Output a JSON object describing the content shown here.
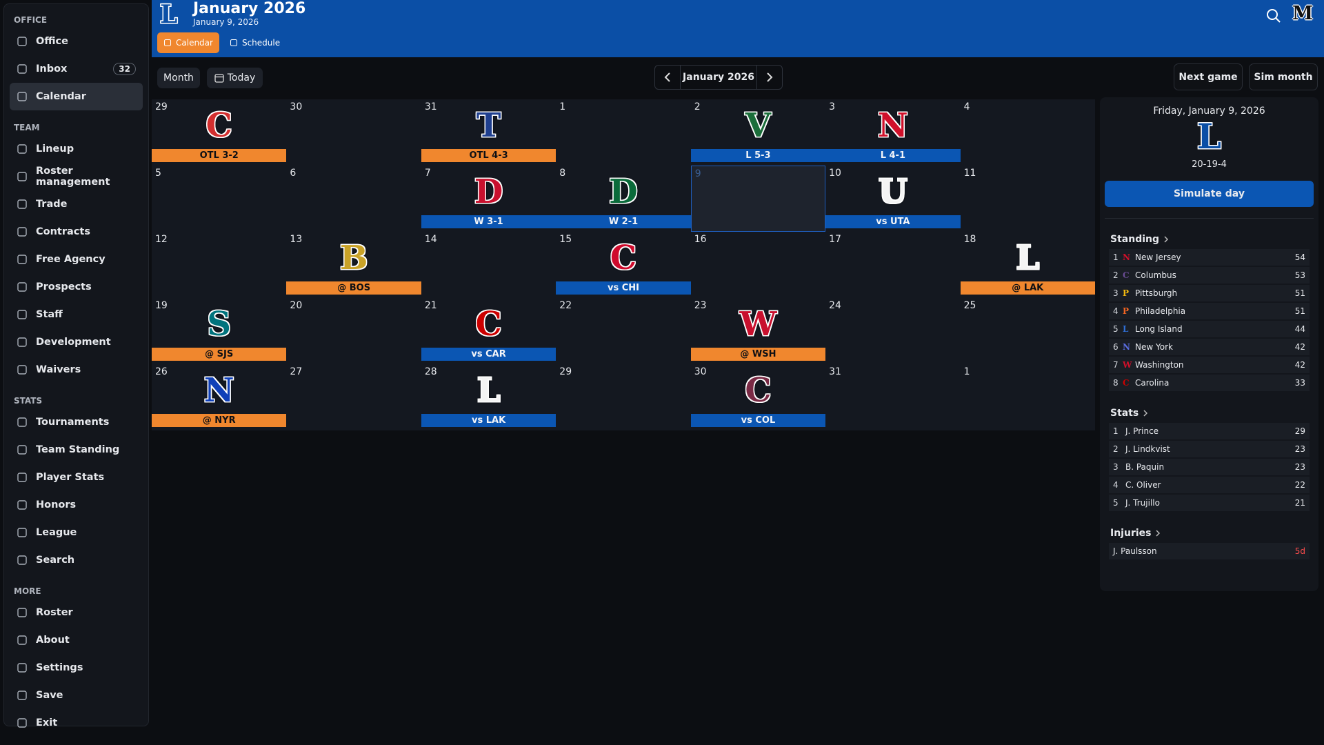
{
  "header": {
    "logo": "L",
    "title": "January 2026",
    "subtitle": "January 9, 2026",
    "tabs": [
      {
        "label": "Calendar",
        "active": true
      },
      {
        "label": "Schedule"
      }
    ],
    "right_logo": "M"
  },
  "sidebar": {
    "sections": [
      {
        "title": "OFFICE",
        "items": [
          {
            "label": "Office"
          },
          {
            "label": "Inbox",
            "badge": 32
          },
          {
            "label": "Calendar",
            "active": true
          }
        ]
      },
      {
        "title": "TEAM",
        "items": [
          {
            "label": "Lineup"
          },
          {
            "label": "Roster management"
          },
          {
            "label": "Trade"
          },
          {
            "label": "Contracts"
          },
          {
            "label": "Free Agency"
          },
          {
            "label": "Prospects"
          },
          {
            "label": "Staff"
          },
          {
            "label": "Development"
          },
          {
            "label": "Waivers"
          }
        ]
      },
      {
        "title": "STATS",
        "items": [
          {
            "label": "Tournaments"
          },
          {
            "label": "Team Standing"
          },
          {
            "label": "Player Stats"
          },
          {
            "label": "Honors"
          },
          {
            "label": "League"
          },
          {
            "label": "Search"
          }
        ]
      },
      {
        "title": "MORE",
        "items": [
          {
            "label": "Roster"
          },
          {
            "label": "About"
          },
          {
            "label": "Settings"
          },
          {
            "label": "Save"
          },
          {
            "label": "Exit"
          }
        ]
      }
    ]
  },
  "toolbar": {
    "view": "Month",
    "today": "Today",
    "month": "January 2026",
    "buttons": [
      "Next game",
      "Sim month"
    ]
  },
  "calendar": {
    "weeks": [
      [
        {
          "day": 29,
          "game": {
            "logo": "C",
            "logo_color": "#d32f2f",
            "result": "OTL 3-2",
            "color": "#f0872e"
          }
        },
        {
          "day": 30
        },
        {
          "day": 31,
          "game": {
            "logo": "T",
            "logo_color": "#1f3f8f",
            "result": "OTL 4-3",
            "color": "#f0872e"
          }
        },
        {
          "day": 1
        },
        {
          "day": 2,
          "game": {
            "logo": "V",
            "logo_color": "#1b6e3a",
            "result": "L 5-3",
            "color": "#0b56b3"
          }
        },
        {
          "day": 3,
          "game": {
            "logo": "N",
            "logo_color": "#d0102a",
            "result": "L 4-1",
            "color": "#0b56b3"
          }
        },
        {
          "day": 4
        }
      ],
      [
        {
          "day": 5
        },
        {
          "day": 6
        },
        {
          "day": 7,
          "game": {
            "logo": "D",
            "logo_color": "#c8102e",
            "result": "W 3-1",
            "color": "#0b56b3"
          }
        },
        {
          "day": 8,
          "game": {
            "logo": "D",
            "logo_color": "#0a6b3a",
            "result": "W 2-1",
            "color": "#0b56b3"
          }
        },
        {
          "day": 9,
          "selected": true
        },
        {
          "day": 10,
          "game": {
            "logo": "U",
            "logo_color": "#f4f4f4",
            "result": "vs UTA",
            "color": "#0b56b3"
          }
        },
        {
          "day": 11
        }
      ],
      [
        {
          "day": 12
        },
        {
          "day": 13,
          "game": {
            "logo": "B",
            "logo_color": "#c9a227",
            "result": "@ BOS",
            "color": "#f0872e"
          }
        },
        {
          "day": 14
        },
        {
          "day": 15,
          "game": {
            "logo": "C",
            "logo_color": "#cf0a2c",
            "result": "vs CHI",
            "color": "#0b56b3"
          }
        },
        {
          "day": 16
        },
        {
          "day": 17
        },
        {
          "day": 18,
          "game": {
            "logo": "L",
            "logo_color": "#f4f4f4",
            "result": "@ LAK",
            "color": "#f0872e"
          }
        }
      ],
      [
        {
          "day": 19,
          "game": {
            "logo": "S",
            "logo_color": "#00737d",
            "result": "@ SJS",
            "color": "#f0872e"
          }
        },
        {
          "day": 20
        },
        {
          "day": 21,
          "game": {
            "logo": "C",
            "logo_color": "#cc0000",
            "result": "vs CAR",
            "color": "#0b56b3"
          }
        },
        {
          "day": 22
        },
        {
          "day": 23,
          "game": {
            "logo": "W",
            "logo_color": "#c8102e",
            "result": "@ WSH",
            "color": "#f0872e"
          }
        },
        {
          "day": 24
        },
        {
          "day": 25
        }
      ],
      [
        {
          "day": 26,
          "game": {
            "logo": "N",
            "logo_color": "#1040b8",
            "result": "@ NYR",
            "color": "#f0872e"
          }
        },
        {
          "day": 27
        },
        {
          "day": 28,
          "game": {
            "logo": "L",
            "logo_color": "#f4f4f4",
            "result": "vs LAK",
            "color": "#0b56b3"
          }
        },
        {
          "day": 29
        },
        {
          "day": 30,
          "game": {
            "logo": "C",
            "logo_color": "#7a2a45",
            "result": "vs COL",
            "color": "#0b56b3"
          }
        },
        {
          "day": 31
        },
        {
          "day": 1
        }
      ]
    ]
  },
  "day_panel": {
    "date": "Friday, January 9, 2026",
    "logo": "L",
    "record": "20-19-4",
    "action": "Simulate day"
  },
  "standing": {
    "title": "Standing",
    "rows": [
      {
        "rank": 1,
        "logo": "N",
        "logo_color": "#d0102a",
        "team": "New Jersey",
        "points": 54
      },
      {
        "rank": 2,
        "logo": "C",
        "logo_color": "#6a4c93",
        "team": "Columbus",
        "points": 53
      },
      {
        "rank": 3,
        "logo": "P",
        "logo_color": "#f2b90f",
        "team": "Pittsburgh",
        "points": 51
      },
      {
        "rank": 4,
        "logo": "P",
        "logo_color": "#f26522",
        "team": "Philadelphia",
        "points": 51
      },
      {
        "rank": 5,
        "logo": "L",
        "logo_color": "#2f6fd6",
        "team": "Long Island",
        "points": 44
      },
      {
        "rank": 6,
        "logo": "N",
        "logo_color": "#5b6ee1",
        "team": "New York",
        "points": 42
      },
      {
        "rank": 7,
        "logo": "W",
        "logo_color": "#d0102a",
        "team": "Washington",
        "points": 42
      },
      {
        "rank": 8,
        "logo": "C",
        "logo_color": "#cc0000",
        "team": "Carolina",
        "points": 33
      }
    ]
  },
  "stats": {
    "title": "Stats",
    "rows": [
      {
        "rank": 1,
        "player": "J. Prince",
        "value": 29
      },
      {
        "rank": 2,
        "player": "J. Lindkvist",
        "value": 23
      },
      {
        "rank": 3,
        "player": "B. Paquin",
        "value": 23
      },
      {
        "rank": 4,
        "player": "C. Oliver",
        "value": 22
      },
      {
        "rank": 5,
        "player": "J. Trujillo",
        "value": 21
      }
    ]
  },
  "injuries": {
    "title": "Injuries",
    "rows": [
      {
        "player": "J. Paulsson",
        "duration": "5d"
      }
    ]
  }
}
